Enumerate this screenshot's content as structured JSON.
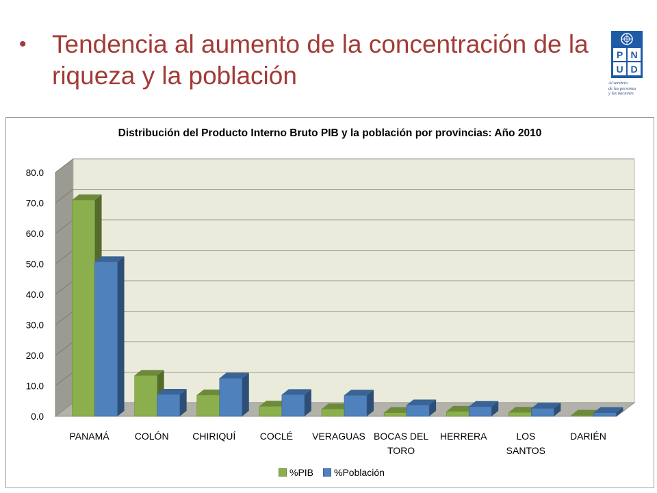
{
  "slide": {
    "bullet": "•",
    "title": "Tendencia al aumento de la concentración de la riqueza y la población"
  },
  "logo": {
    "letters": [
      "P",
      "N",
      "U",
      "D"
    ],
    "tagline_lines": [
      "Al servicio",
      "de las personas",
      "y las naciones"
    ]
  },
  "colors": {
    "title": "#a33b36",
    "pib": "#8caf4d",
    "poblacion": "#4f81bd",
    "plot_bg": "#ebebdc"
  },
  "chart_data": {
    "type": "bar",
    "title": "Distribución del Producto Interno Bruto PIB y la población por provincias:  Año 2010",
    "categories": [
      "PANAMÁ",
      "COLÓN",
      "CHIRIQUÍ",
      "COCLÉ",
      "VERAGUAS",
      "BOCAS DEL TORO",
      "HERRERA",
      "LOS SANTOS",
      "DARIÉN"
    ],
    "category_lines": [
      [
        "PANAMÁ"
      ],
      [
        "COLÓN"
      ],
      [
        "CHIRIQUÍ"
      ],
      [
        "COCLÉ"
      ],
      [
        "VERAGUAS"
      ],
      [
        "BOCAS DEL",
        "TORO"
      ],
      [
        "HERRERA"
      ],
      [
        "LOS",
        "SANTOS"
      ],
      [
        "DARIÉN"
      ]
    ],
    "series": [
      {
        "name": "%PIB",
        "values": [
          71.0,
          13.4,
          7.0,
          3.3,
          2.4,
          1.2,
          1.6,
          1.3,
          0.3
        ]
      },
      {
        "name": "%Población",
        "values": [
          50.7,
          7.2,
          12.5,
          7.1,
          6.9,
          3.7,
          3.2,
          2.6,
          1.2
        ]
      }
    ],
    "yticks": [
      "0.0",
      "10.0",
      "20.0",
      "30.0",
      "40.0",
      "50.0",
      "60.0",
      "70.0",
      "80.0"
    ],
    "ylim": [
      0,
      80
    ],
    "grid": true,
    "legend_position": "bottom",
    "style": "3d-clustered-column"
  }
}
